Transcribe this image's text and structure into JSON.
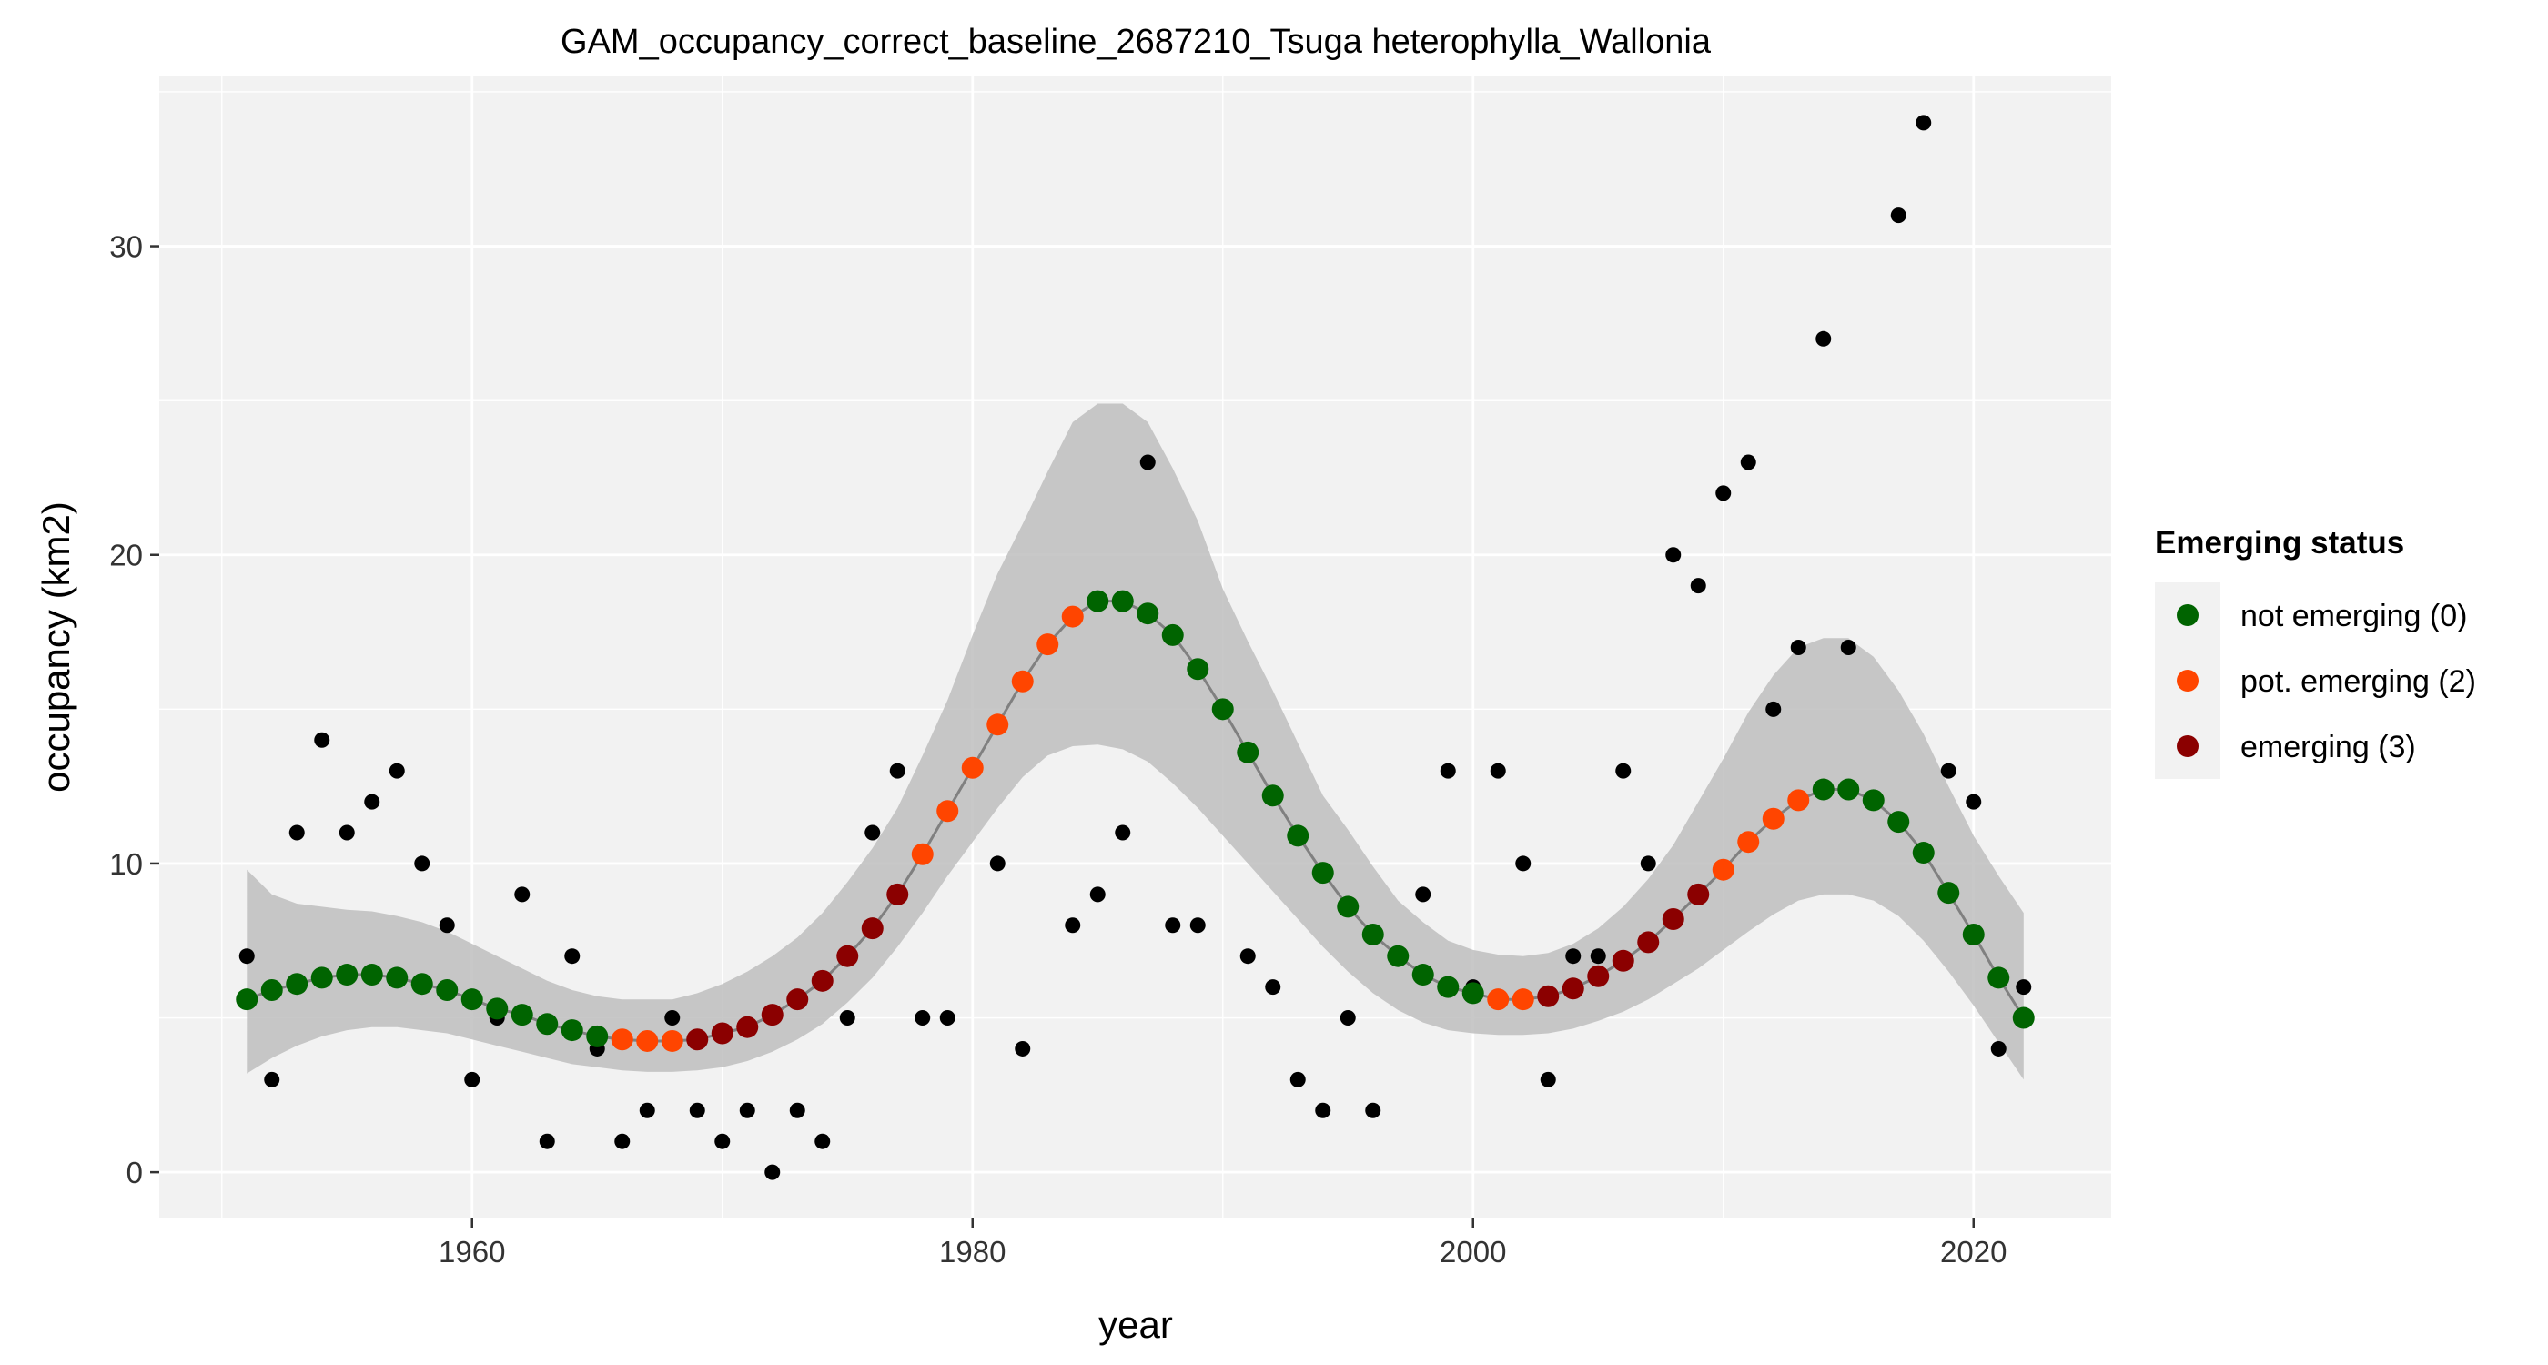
{
  "chart_data": {
    "type": "scatter",
    "title": "GAM_occupancy_correct_baseline_2687210_Tsuga heterophylla_Wallonia",
    "xlabel": "year",
    "ylabel": "occupancy (km2)",
    "xlim": [
      1947.5,
      2025.5
    ],
    "ylim": [
      -1.5,
      35.5
    ],
    "x_ticks": [
      1960,
      1980,
      2000,
      2020
    ],
    "y_ticks": [
      0,
      10,
      20,
      30
    ],
    "grid": true,
    "legend": {
      "title": "Emerging status",
      "placement": "right",
      "entries": [
        {
          "label": "not emerging (0)",
          "color": "#006400"
        },
        {
          "label": "pot. emerging (2)",
          "color": "#FF4500"
        },
        {
          "label": "emerging (3)",
          "color": "#8B0000"
        }
      ]
    },
    "colors": {
      "panel_bg": "#F2F2F2",
      "grid": "#FFFFFF",
      "ribbon": "#BEBEBE",
      "line": "#808080",
      "observed": "#000000"
    },
    "observed": {
      "name": "observed occupancy",
      "x": [
        1951,
        1952,
        1953,
        1954,
        1955,
        1956,
        1957,
        1958,
        1959,
        1960,
        1961,
        1962,
        1963,
        1964,
        1965,
        1966,
        1967,
        1968,
        1969,
        1970,
        1971,
        1972,
        1973,
        1974,
        1975,
        1976,
        1977,
        1978,
        1979,
        1981,
        1982,
        1984,
        1985,
        1986,
        1987,
        1988,
        1989,
        1991,
        1992,
        1993,
        1994,
        1995,
        1996,
        1998,
        1999,
        2000,
        2001,
        2002,
        2003,
        2004,
        2005,
        2006,
        2007,
        2008,
        2009,
        2010,
        2011,
        2012,
        2013,
        2015,
        2014,
        2017,
        2018,
        2019,
        2020,
        2021,
        2022
      ],
      "y": [
        7,
        3,
        11,
        14,
        11,
        12,
        13,
        10,
        8,
        3,
        5,
        9,
        1,
        7,
        4,
        1,
        2,
        5,
        2,
        1,
        2,
        0,
        2,
        1,
        5,
        11,
        13,
        5,
        5,
        10,
        4,
        8,
        9,
        11,
        23,
        8,
        8,
        7,
        6,
        3,
        2,
        5,
        2,
        9,
        13,
        6,
        13,
        10,
        3,
        7,
        7,
        13,
        10,
        20,
        19,
        22,
        23,
        15,
        17,
        17,
        27,
        31,
        34,
        13,
        12,
        4,
        6
      ]
    },
    "fitted": {
      "name": "GAM fit",
      "x": [
        1951,
        1952,
        1953,
        1954,
        1955,
        1956,
        1957,
        1958,
        1959,
        1960,
        1961,
        1962,
        1963,
        1964,
        1965,
        1966,
        1967,
        1968,
        1969,
        1970,
        1971,
        1972,
        1973,
        1974,
        1975,
        1976,
        1977,
        1978,
        1979,
        1980,
        1981,
        1982,
        1983,
        1984,
        1985,
        1986,
        1987,
        1988,
        1989,
        1990,
        1991,
        1992,
        1993,
        1994,
        1995,
        1996,
        1997,
        1998,
        1999,
        2000,
        2001,
        2002,
        2003,
        2004,
        2005,
        2006,
        2007,
        2008,
        2009,
        2010,
        2011,
        2012,
        2013,
        2014,
        2015,
        2016,
        2017,
        2018,
        2019,
        2020,
        2021,
        2022
      ],
      "y": [
        5.6,
        5.9,
        6.1,
        6.3,
        6.4,
        6.4,
        6.3,
        6.1,
        5.9,
        5.6,
        5.3,
        5.1,
        4.8,
        4.6,
        4.4,
        4.3,
        4.25,
        4.25,
        4.3,
        4.5,
        4.7,
        5.1,
        5.6,
        6.2,
        7.0,
        7.9,
        9.0,
        10.3,
        11.7,
        13.1,
        14.5,
        15.9,
        17.1,
        18.0,
        18.5,
        18.5,
        18.1,
        17.4,
        16.3,
        15.0,
        13.6,
        12.2,
        10.9,
        9.7,
        8.6,
        7.7,
        7.0,
        6.4,
        6.0,
        5.8,
        5.6,
        5.6,
        5.7,
        5.95,
        6.35,
        6.85,
        7.45,
        8.2,
        9.0,
        9.8,
        10.7,
        11.45,
        12.05,
        12.4,
        12.4,
        12.05,
        11.35,
        10.35,
        9.05,
        7.7,
        6.3,
        5.0
      ],
      "status": [
        0,
        0,
        0,
        0,
        0,
        0,
        0,
        0,
        0,
        0,
        0,
        0,
        0,
        0,
        0,
        2,
        2,
        2,
        3,
        3,
        3,
        3,
        3,
        3,
        3,
        3,
        3,
        2,
        2,
        2,
        2,
        2,
        2,
        2,
        0,
        0,
        0,
        0,
        0,
        0,
        0,
        0,
        0,
        0,
        0,
        0,
        0,
        0,
        0,
        0,
        2,
        2,
        3,
        3,
        3,
        3,
        3,
        3,
        3,
        2,
        2,
        2,
        2,
        0,
        0,
        0,
        0,
        0,
        0,
        0,
        0,
        0
      ],
      "lower": [
        3.2,
        3.7,
        4.1,
        4.4,
        4.6,
        4.7,
        4.7,
        4.6,
        4.5,
        4.3,
        4.1,
        3.9,
        3.7,
        3.5,
        3.4,
        3.3,
        3.25,
        3.25,
        3.3,
        3.4,
        3.6,
        3.9,
        4.3,
        4.8,
        5.5,
        6.3,
        7.3,
        8.4,
        9.6,
        10.7,
        11.8,
        12.8,
        13.5,
        13.8,
        13.85,
        13.7,
        13.3,
        12.6,
        11.8,
        10.9,
        10.0,
        9.1,
        8.2,
        7.3,
        6.5,
        5.8,
        5.25,
        4.85,
        4.6,
        4.5,
        4.45,
        4.45,
        4.5,
        4.65,
        4.9,
        5.2,
        5.6,
        6.1,
        6.6,
        7.2,
        7.8,
        8.35,
        8.8,
        9.0,
        9.0,
        8.8,
        8.3,
        7.5,
        6.5,
        5.4,
        4.2,
        3.0
      ],
      "upper": [
        9.8,
        9.0,
        8.7,
        8.6,
        8.5,
        8.45,
        8.3,
        8.1,
        7.8,
        7.4,
        7.0,
        6.6,
        6.2,
        5.9,
        5.7,
        5.6,
        5.6,
        5.6,
        5.8,
        6.1,
        6.5,
        7.0,
        7.6,
        8.4,
        9.4,
        10.5,
        11.8,
        13.5,
        15.3,
        17.4,
        19.4,
        21.0,
        22.7,
        24.3,
        24.9,
        24.9,
        24.3,
        22.8,
        21.1,
        18.9,
        17.2,
        15.6,
        13.9,
        12.2,
        11.1,
        9.9,
        8.8,
        8.1,
        7.5,
        7.2,
        7.05,
        7.0,
        7.1,
        7.4,
        7.9,
        8.6,
        9.5,
        10.6,
        12.0,
        13.4,
        14.9,
        16.1,
        17.0,
        17.3,
        17.3,
        16.7,
        15.6,
        14.2,
        12.5,
        10.9,
        9.6,
        8.4
      ]
    }
  }
}
